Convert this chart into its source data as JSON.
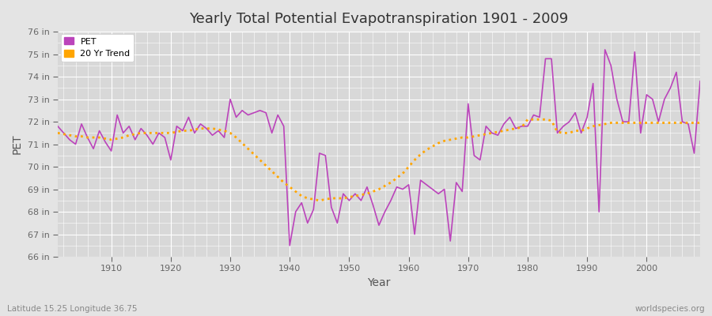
{
  "title": "Yearly Total Potential Evapotranspiration 1901 - 2009",
  "xlabel": "Year",
  "ylabel": "PET",
  "subtitle_left": "Latitude 15.25 Longitude 36.75",
  "subtitle_right": "worldspecies.org",
  "pet_color": "#BB44BB",
  "trend_color": "#FFA500",
  "background_color": "#E4E4E4",
  "plot_bg_color": "#D8D8D8",
  "grid_color": "#FFFFFF",
  "ylim": [
    66,
    76
  ],
  "xlim": [
    1901,
    2009
  ],
  "years": [
    1901,
    1902,
    1903,
    1904,
    1905,
    1906,
    1907,
    1908,
    1909,
    1910,
    1911,
    1912,
    1913,
    1914,
    1915,
    1916,
    1917,
    1918,
    1919,
    1920,
    1921,
    1922,
    1923,
    1924,
    1925,
    1926,
    1927,
    1928,
    1929,
    1930,
    1931,
    1932,
    1933,
    1934,
    1935,
    1936,
    1937,
    1938,
    1939,
    1940,
    1941,
    1942,
    1943,
    1944,
    1945,
    1946,
    1947,
    1948,
    1949,
    1950,
    1951,
    1952,
    1953,
    1954,
    1955,
    1956,
    1957,
    1958,
    1959,
    1960,
    1961,
    1962,
    1963,
    1964,
    1965,
    1966,
    1967,
    1968,
    1969,
    1970,
    1971,
    1972,
    1973,
    1974,
    1975,
    1976,
    1977,
    1978,
    1979,
    1980,
    1981,
    1982,
    1983,
    1984,
    1985,
    1986,
    1987,
    1988,
    1989,
    1990,
    1991,
    1992,
    1993,
    1994,
    1995,
    1996,
    1997,
    1998,
    1999,
    2000,
    2001,
    2002,
    2003,
    2004,
    2005,
    2006,
    2007,
    2008,
    2009
  ],
  "pet_values": [
    71.8,
    71.5,
    71.2,
    71.0,
    71.9,
    71.3,
    70.8,
    71.6,
    71.1,
    70.7,
    72.3,
    71.5,
    71.8,
    71.2,
    71.7,
    71.4,
    71.0,
    71.5,
    71.3,
    70.3,
    71.8,
    71.6,
    72.2,
    71.5,
    71.9,
    71.7,
    71.4,
    71.6,
    71.3,
    73.0,
    72.2,
    72.5,
    72.3,
    72.4,
    72.5,
    72.4,
    71.5,
    72.3,
    71.8,
    66.5,
    68.0,
    68.4,
    67.5,
    68.1,
    70.6,
    70.5,
    68.2,
    67.5,
    68.8,
    68.5,
    68.8,
    68.5,
    69.1,
    68.3,
    67.4,
    68.0,
    68.5,
    69.1,
    69.0,
    69.2,
    67.0,
    69.4,
    69.2,
    69.0,
    68.8,
    69.0,
    66.7,
    69.3,
    68.9,
    72.8,
    70.5,
    70.3,
    71.8,
    71.5,
    71.4,
    71.9,
    72.2,
    71.7,
    71.8,
    71.8,
    72.3,
    72.2,
    74.8,
    74.8,
    71.5,
    71.8,
    72.0,
    72.4,
    71.5,
    72.2,
    73.7,
    68.0,
    75.2,
    74.5,
    73.0,
    72.0,
    72.0,
    75.1,
    71.5,
    73.2,
    73.0,
    72.0,
    73.0,
    73.5,
    74.2,
    72.0,
    71.9,
    70.6,
    73.8
  ],
  "trend_values": [
    71.5,
    71.45,
    71.4,
    71.35,
    71.35,
    71.3,
    71.3,
    71.3,
    71.25,
    71.2,
    71.25,
    71.3,
    71.4,
    71.45,
    71.5,
    71.5,
    71.5,
    71.5,
    71.5,
    71.5,
    71.55,
    71.6,
    71.6,
    71.65,
    71.7,
    71.7,
    71.7,
    71.65,
    71.6,
    71.5,
    71.3,
    71.05,
    70.8,
    70.55,
    70.3,
    70.05,
    69.8,
    69.55,
    69.3,
    69.1,
    68.9,
    68.7,
    68.6,
    68.55,
    68.5,
    68.55,
    68.6,
    68.6,
    68.6,
    68.65,
    68.7,
    68.75,
    68.8,
    68.9,
    69.0,
    69.15,
    69.3,
    69.5,
    69.7,
    70.0,
    70.3,
    70.55,
    70.75,
    70.9,
    71.05,
    71.15,
    71.2,
    71.25,
    71.3,
    71.3,
    71.35,
    71.4,
    71.45,
    71.5,
    71.55,
    71.6,
    71.65,
    71.7,
    71.75,
    72.1,
    72.1,
    72.1,
    72.1,
    72.05,
    71.55,
    71.5,
    71.5,
    71.6,
    71.6,
    71.7,
    71.8,
    71.85,
    71.9,
    71.95,
    71.95,
    71.95,
    71.95,
    71.95,
    71.95,
    71.95,
    71.95,
    71.95,
    71.95,
    71.95,
    71.95,
    71.95,
    71.95,
    71.95,
    71.95
  ]
}
